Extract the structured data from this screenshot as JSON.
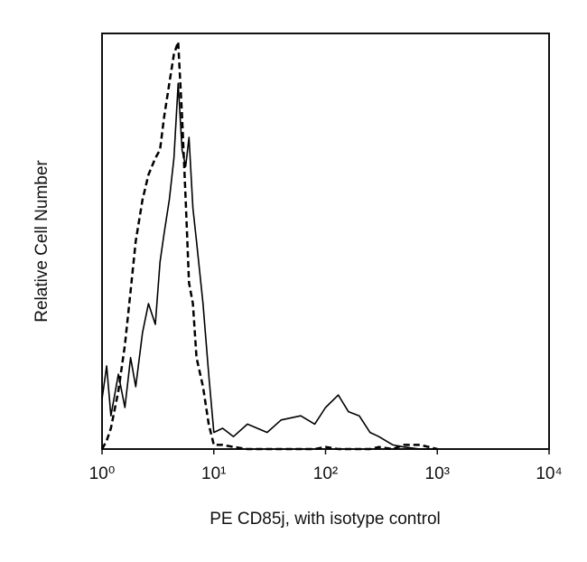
{
  "chart_data": {
    "type": "line",
    "xlabel": "PE CD85j, with isotype control",
    "ylabel": "Relative Cell Number",
    "xscale": "log",
    "xlim": [
      1,
      10000
    ],
    "xticks": [
      {
        "value": 1,
        "label": "10⁰"
      },
      {
        "value": 10,
        "label": "10¹"
      },
      {
        "value": 100,
        "label": "10²"
      },
      {
        "value": 1000,
        "label": "10³"
      },
      {
        "value": 10000,
        "label": "10⁴"
      }
    ],
    "ylim": [
      0,
      100
    ],
    "x": [
      1,
      1.1,
      1.2,
      1.4,
      1.6,
      1.8,
      2,
      2.3,
      2.6,
      3,
      3.3,
      3.6,
      4,
      4.4,
      4.8,
      5.2,
      5.6,
      6,
      6.5,
      7,
      8,
      9,
      10,
      12,
      15,
      20,
      30,
      40,
      60,
      80,
      100,
      130,
      160,
      200,
      250,
      300,
      400,
      500,
      700,
      1000
    ],
    "series": [
      {
        "color": "#000000",
        "dash": "solid",
        "values": [
          12,
          20,
          8,
          18,
          10,
          22,
          15,
          28,
          35,
          30,
          45,
          52,
          60,
          70,
          88,
          72,
          68,
          75,
          58,
          50,
          35,
          18,
          4,
          5,
          3,
          6,
          4,
          7,
          8,
          6,
          10,
          13,
          9,
          8,
          4,
          3,
          1,
          0.5,
          0,
          0
        ]
      },
      {
        "color": "#000000",
        "dash": "dashed",
        "values": [
          0,
          2,
          5,
          14,
          25,
          38,
          50,
          60,
          66,
          70,
          72,
          80,
          88,
          95,
          98,
          80,
          60,
          40,
          35,
          22,
          15,
          6,
          1,
          1,
          0.5,
          0,
          0,
          0,
          0,
          0,
          0.5,
          0,
          0,
          0,
          0,
          0.5,
          0,
          1,
          1,
          0
        ]
      }
    ]
  }
}
